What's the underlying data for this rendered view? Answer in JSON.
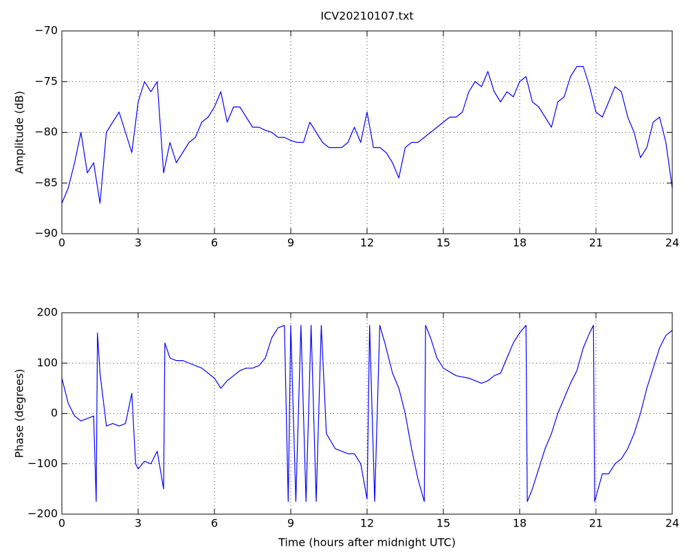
{
  "chart_data": [
    {
      "type": "line",
      "title": "ICV20210107.txt",
      "ylabel": "Amplitude (dB)",
      "color": "#0000ff",
      "grid": true,
      "xlim": [
        0,
        24
      ],
      "xticks": [
        0,
        3,
        6,
        9,
        12,
        15,
        18,
        21,
        24
      ],
      "ylim": [
        -90,
        -70
      ],
      "yticks": [
        {
          "value": -90,
          "label": "−90"
        },
        {
          "value": -85,
          "label": "−85"
        },
        {
          "value": -80,
          "label": "−80"
        },
        {
          "value": -75,
          "label": "−75"
        },
        {
          "value": -70,
          "label": "−70"
        }
      ],
      "x": [
        0,
        0.25,
        0.5,
        0.75,
        1,
        1.25,
        1.5,
        1.75,
        2,
        2.25,
        2.5,
        2.75,
        3,
        3.25,
        3.5,
        3.75,
        4,
        4.25,
        4.5,
        4.75,
        5,
        5.25,
        5.5,
        5.75,
        6,
        6.25,
        6.5,
        6.75,
        7,
        7.25,
        7.5,
        7.75,
        8,
        8.25,
        8.5,
        8.75,
        9,
        9.25,
        9.5,
        9.75,
        10,
        10.25,
        10.5,
        10.75,
        11,
        11.25,
        11.5,
        11.75,
        12,
        12.25,
        12.5,
        12.75,
        13,
        13.25,
        13.5,
        13.75,
        14,
        14.25,
        14.5,
        14.75,
        15,
        15.25,
        15.5,
        15.75,
        16,
        16.25,
        16.5,
        16.75,
        17,
        17.25,
        17.5,
        17.75,
        18,
        18.25,
        18.5,
        18.75,
        19,
        19.25,
        19.5,
        19.75,
        20,
        20.25,
        20.5,
        20.75,
        21,
        21.25,
        21.5,
        21.75,
        22,
        22.25,
        22.5,
        22.75,
        23,
        23.25,
        23.5,
        23.75,
        24
      ],
      "values": [
        -87,
        -85.5,
        -83,
        -80,
        -84,
        -83,
        -87,
        -80,
        -79,
        -78,
        -80,
        -82,
        -77,
        -75,
        -76,
        -75,
        -84,
        -81,
        -83,
        -82,
        -81,
        -80.5,
        -79,
        -78.5,
        -77.5,
        -76,
        -79,
        -77.5,
        -77.5,
        -78.5,
        -79.5,
        -79.5,
        -79.8,
        -80,
        -80.5,
        -80.5,
        -80.8,
        -81,
        -81,
        -79,
        -80,
        -81,
        -81.5,
        -81.5,
        -81.5,
        -81,
        -79.5,
        -81,
        -78,
        -81.5,
        -81.5,
        -82,
        -83,
        -84.5,
        -81.5,
        -81,
        -81,
        -80.5,
        -80,
        -79.5,
        -79,
        -78.5,
        -78.5,
        -78,
        -76,
        -75,
        -75.5,
        -74,
        -76,
        -77,
        -76,
        -76.5,
        -75,
        -74.5,
        -77,
        -77.5,
        -78.5,
        -79.5,
        -77,
        -76.5,
        -74.5,
        -73.5,
        -73.5,
        -75.5,
        -78,
        -78.5,
        -77,
        -75.5,
        -76,
        -78.5,
        -80,
        -82.5,
        -81.5,
        -79,
        -78.5,
        -81,
        -85.5
      ]
    },
    {
      "type": "line",
      "xlabel": "Time (hours after midnight UTC)",
      "ylabel": "Phase (degrees)",
      "color": "#0000ff",
      "grid": true,
      "xlim": [
        0,
        24
      ],
      "xticks": [
        0,
        3,
        6,
        9,
        12,
        15,
        18,
        21,
        24
      ],
      "ylim": [
        -200,
        200
      ],
      "yticks": [
        {
          "value": -200,
          "label": "−200"
        },
        {
          "value": -100,
          "label": "−100"
        },
        0,
        100,
        200
      ],
      "x": [
        0,
        0.25,
        0.5,
        0.75,
        1,
        1.25,
        1.35,
        1.4,
        1.5,
        1.75,
        2,
        2.25,
        2.5,
        2.75,
        2.9,
        3,
        3.25,
        3.5,
        3.75,
        4,
        4.05,
        4.25,
        4.5,
        4.75,
        5,
        5.25,
        5.5,
        5.75,
        6,
        6.25,
        6.5,
        6.75,
        7,
        7.25,
        7.5,
        7.75,
        8,
        8.25,
        8.5,
        8.75,
        8.9,
        9,
        9.2,
        9.4,
        9.6,
        9.8,
        10,
        10.2,
        10.4,
        10.75,
        11,
        11.25,
        11.5,
        11.75,
        12,
        12.1,
        12.3,
        12.5,
        12.7,
        13,
        13.25,
        13.5,
        13.75,
        14,
        14.25,
        14.3,
        14.5,
        14.75,
        15,
        15.5,
        16,
        16.5,
        16.75,
        17,
        17.25,
        17.5,
        17.75,
        18,
        18.25,
        18.3,
        18.5,
        18.75,
        19,
        19.25,
        19.5,
        19.75,
        20,
        20.25,
        20.5,
        20.75,
        20.9,
        20.95,
        21.25,
        21.5,
        21.75,
        22,
        22.25,
        22.5,
        22.75,
        23,
        23.25,
        23.5,
        23.75,
        24
      ],
      "values": [
        70,
        20,
        -5,
        -15,
        -10,
        -5,
        -175,
        160,
        80,
        -25,
        -20,
        -25,
        -20,
        40,
        -100,
        -110,
        -95,
        -100,
        -75,
        -150,
        140,
        110,
        105,
        105,
        100,
        95,
        90,
        80,
        70,
        50,
        65,
        75,
        85,
        90,
        90,
        95,
        110,
        150,
        170,
        175,
        -175,
        175,
        -175,
        175,
        -175,
        175,
        -175,
        175,
        -40,
        -70,
        -75,
        -80,
        -80,
        -100,
        -170,
        175,
        -175,
        175,
        140,
        80,
        50,
        0,
        -70,
        -130,
        -175,
        175,
        150,
        110,
        90,
        75,
        70,
        60,
        65,
        75,
        80,
        110,
        140,
        160,
        175,
        -175,
        -150,
        -110,
        -70,
        -40,
        0,
        30,
        60,
        85,
        130,
        160,
        175,
        -175,
        -120,
        -120,
        -100,
        -90,
        -70,
        -40,
        0,
        50,
        90,
        130,
        155,
        165
      ]
    }
  ]
}
